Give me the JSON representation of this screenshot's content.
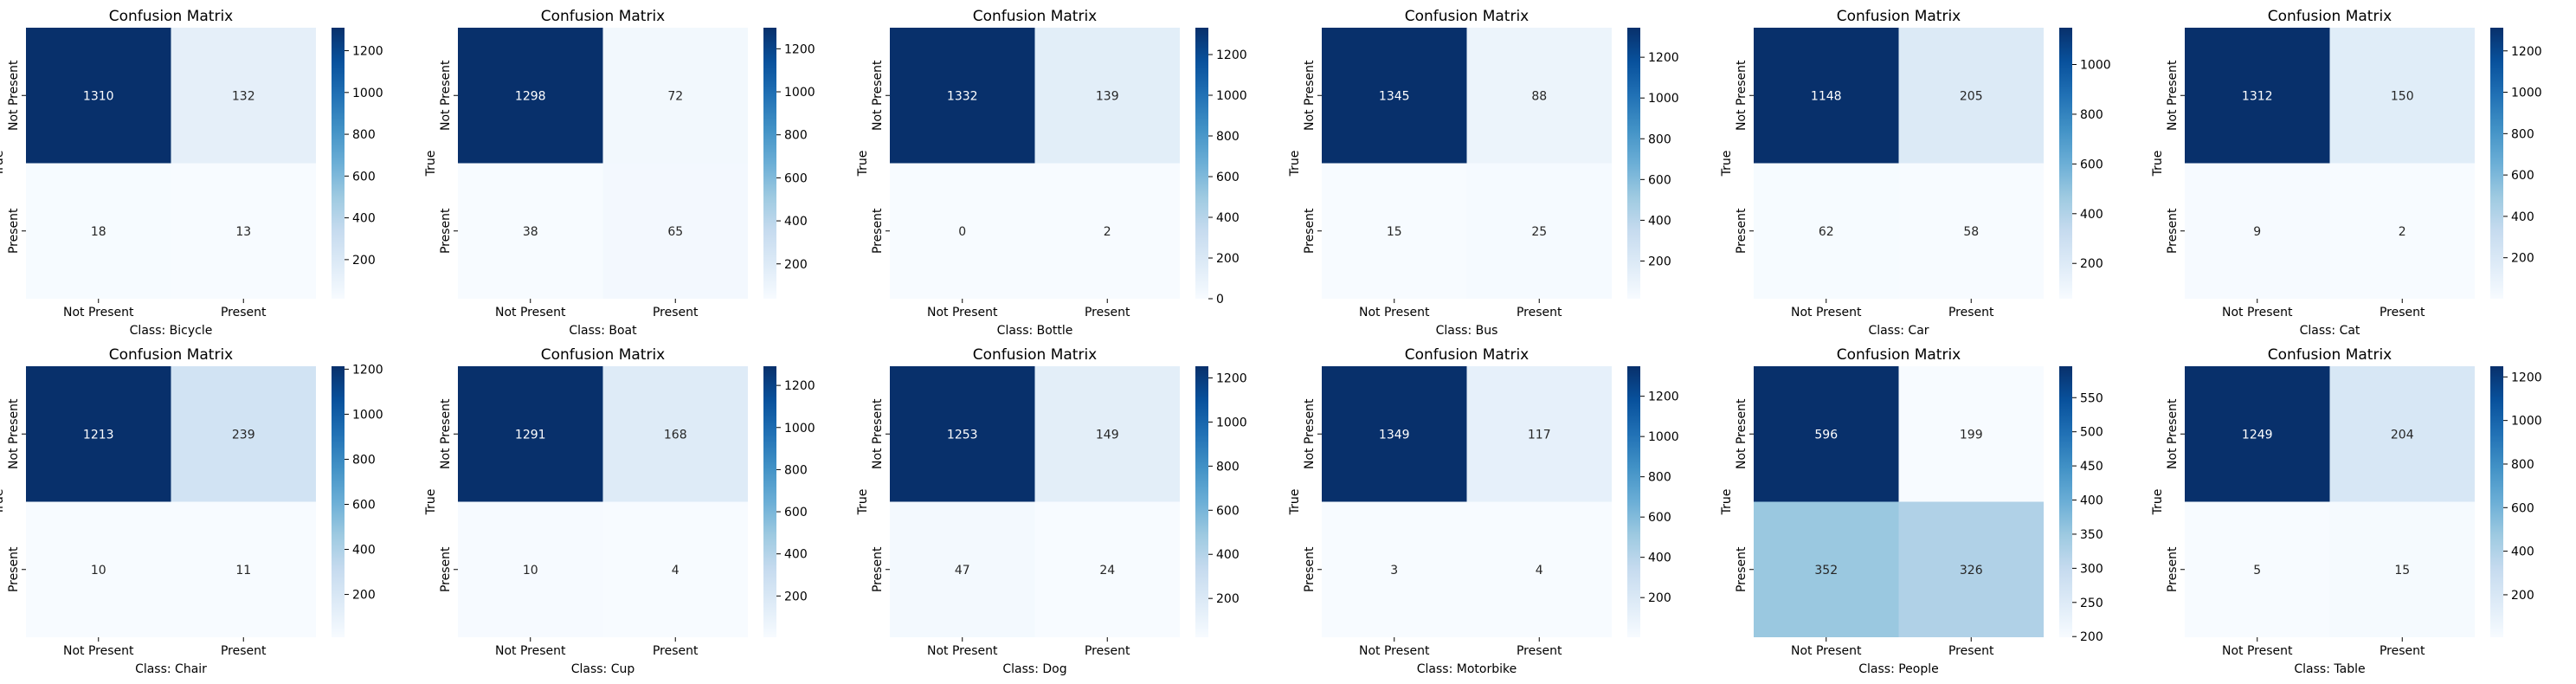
{
  "chart_data": [
    {
      "type": "heatmap",
      "title": "Confusion Matrix",
      "xlabel": "Class: Bicycle",
      "ylabel": "True",
      "x_categories": [
        "Not Present",
        "Present"
      ],
      "y_categories": [
        "Not Present",
        "Present"
      ],
      "values": [
        [
          1310,
          132
        ],
        [
          18,
          13
        ]
      ],
      "colorbar": {
        "min": 13,
        "max": 1310,
        "ticks": [
          200,
          400,
          600,
          800,
          1000,
          1200
        ]
      }
    },
    {
      "type": "heatmap",
      "title": "Confusion Matrix",
      "xlabel": "Class: Boat",
      "ylabel": "True",
      "x_categories": [
        "Not Present",
        "Present"
      ],
      "y_categories": [
        "Not Present",
        "Present"
      ],
      "values": [
        [
          1298,
          72
        ],
        [
          38,
          65
        ]
      ],
      "colorbar": {
        "min": 38,
        "max": 1298,
        "ticks": [
          200,
          400,
          600,
          800,
          1000,
          1200
        ]
      }
    },
    {
      "type": "heatmap",
      "title": "Confusion Matrix",
      "xlabel": "Class: Bottle",
      "ylabel": "True",
      "x_categories": [
        "Not Present",
        "Present"
      ],
      "y_categories": [
        "Not Present",
        "Present"
      ],
      "values": [
        [
          1332,
          139
        ],
        [
          0,
          2
        ]
      ],
      "colorbar": {
        "min": 0,
        "max": 1332,
        "ticks": [
          0,
          200,
          400,
          600,
          800,
          1000,
          1200
        ]
      }
    },
    {
      "type": "heatmap",
      "title": "Confusion Matrix",
      "xlabel": "Class: Bus",
      "ylabel": "True",
      "x_categories": [
        "Not Present",
        "Present"
      ],
      "y_categories": [
        "Not Present",
        "Present"
      ],
      "values": [
        [
          1345,
          88
        ],
        [
          15,
          25
        ]
      ],
      "colorbar": {
        "min": 15,
        "max": 1345,
        "ticks": [
          200,
          400,
          600,
          800,
          1000,
          1200
        ]
      }
    },
    {
      "type": "heatmap",
      "title": "Confusion Matrix",
      "xlabel": "Class: Car",
      "ylabel": "True",
      "x_categories": [
        "Not Present",
        "Present"
      ],
      "y_categories": [
        "Not Present",
        "Present"
      ],
      "values": [
        [
          1148,
          205
        ],
        [
          62,
          58
        ]
      ],
      "colorbar": {
        "min": 58,
        "max": 1148,
        "ticks": [
          200,
          400,
          600,
          800,
          1000
        ]
      }
    },
    {
      "type": "heatmap",
      "title": "Confusion Matrix",
      "xlabel": "Class: Cat",
      "ylabel": "True",
      "x_categories": [
        "Not Present",
        "Present"
      ],
      "y_categories": [
        "Not Present",
        "Present"
      ],
      "values": [
        [
          1312,
          150
        ],
        [
          9,
          2
        ]
      ],
      "colorbar": {
        "min": 2,
        "max": 1312,
        "ticks": [
          200,
          400,
          600,
          800,
          1000,
          1200
        ]
      }
    },
    {
      "type": "heatmap",
      "title": "Confusion Matrix",
      "xlabel": "Class: Chair",
      "ylabel": "True",
      "x_categories": [
        "Not Present",
        "Present"
      ],
      "y_categories": [
        "Not Present",
        "Present"
      ],
      "values": [
        [
          1213,
          239
        ],
        [
          10,
          11
        ]
      ],
      "colorbar": {
        "min": 10,
        "max": 1213,
        "ticks": [
          200,
          400,
          600,
          800,
          1000,
          1200
        ]
      }
    },
    {
      "type": "heatmap",
      "title": "Confusion Matrix",
      "xlabel": "Class: Cup",
      "ylabel": "True",
      "x_categories": [
        "Not Present",
        "Present"
      ],
      "y_categories": [
        "Not Present",
        "Present"
      ],
      "values": [
        [
          1291,
          168
        ],
        [
          10,
          4
        ]
      ],
      "colorbar": {
        "min": 4,
        "max": 1291,
        "ticks": [
          200,
          400,
          600,
          800,
          1000,
          1200
        ]
      }
    },
    {
      "type": "heatmap",
      "title": "Confusion Matrix",
      "xlabel": "Class: Dog",
      "ylabel": "True",
      "x_categories": [
        "Not Present",
        "Present"
      ],
      "y_categories": [
        "Not Present",
        "Present"
      ],
      "values": [
        [
          1253,
          149
        ],
        [
          47,
          24
        ]
      ],
      "colorbar": {
        "min": 24,
        "max": 1253,
        "ticks": [
          200,
          400,
          600,
          800,
          1000,
          1200
        ]
      }
    },
    {
      "type": "heatmap",
      "title": "Confusion Matrix",
      "xlabel": "Class: Motorbike",
      "ylabel": "True",
      "x_categories": [
        "Not Present",
        "Present"
      ],
      "y_categories": [
        "Not Present",
        "Present"
      ],
      "values": [
        [
          1349,
          117
        ],
        [
          3,
          4
        ]
      ],
      "colorbar": {
        "min": 3,
        "max": 1349,
        "ticks": [
          200,
          400,
          600,
          800,
          1000,
          1200
        ]
      }
    },
    {
      "type": "heatmap",
      "title": "Confusion Matrix",
      "xlabel": "Class: People",
      "ylabel": "True",
      "x_categories": [
        "Not Present",
        "Present"
      ],
      "y_categories": [
        "Not Present",
        "Present"
      ],
      "values": [
        [
          596,
          199
        ],
        [
          352,
          326
        ]
      ],
      "colorbar": {
        "min": 199,
        "max": 596,
        "ticks": [
          200,
          250,
          300,
          350,
          400,
          450,
          500,
          550
        ]
      }
    },
    {
      "type": "heatmap",
      "title": "Confusion Matrix",
      "xlabel": "Class: Table",
      "ylabel": "True",
      "x_categories": [
        "Not Present",
        "Present"
      ],
      "y_categories": [
        "Not Present",
        "Present"
      ],
      "values": [
        [
          1249,
          204
        ],
        [
          5,
          15
        ]
      ],
      "colorbar": {
        "min": 5,
        "max": 1249,
        "ticks": [
          200,
          400,
          600,
          800,
          1000,
          1200
        ]
      }
    }
  ],
  "colors": {
    "scale": [
      "#f7fbff",
      "#deebf7",
      "#c6dbef",
      "#9ecae1",
      "#6baed6",
      "#4292c6",
      "#2171b5",
      "#08519c",
      "#08306b"
    ],
    "text_dark": "#262626",
    "text_light": "#ffffff"
  }
}
